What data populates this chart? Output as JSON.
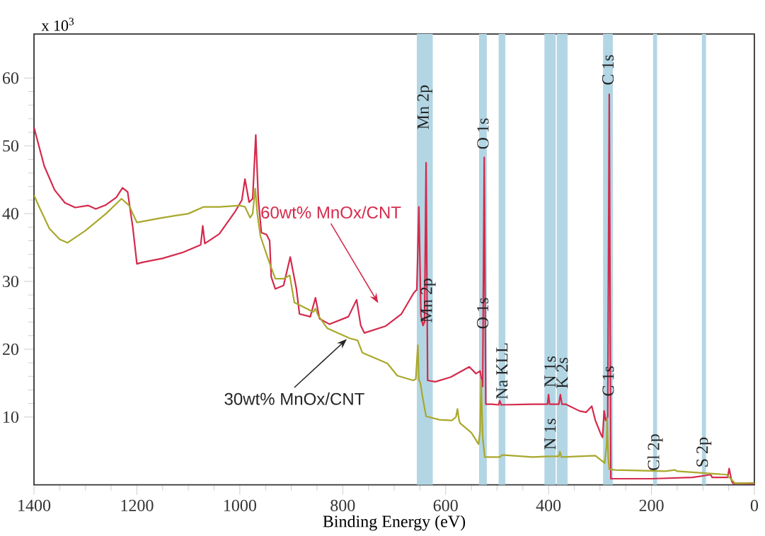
{
  "chart_data": {
    "type": "line",
    "xlabel": "Binding Energy (eV)",
    "xlim": [
      1400,
      0
    ],
    "ylim": [
      0,
      66.5
    ],
    "xticks": [
      1400,
      1200,
      1000,
      800,
      600,
      400,
      200,
      0
    ],
    "yticks": [
      10,
      20,
      30,
      40,
      50,
      60
    ],
    "marker": "none",
    "line_style": "solid",
    "series": [
      {
        "name": "60wt% MnOx/CNT",
        "color": "#d42a4c",
        "x": [
          1400,
          1380,
          1360,
          1340,
          1320,
          1295,
          1280,
          1260,
          1240,
          1228,
          1218,
          1208,
          1200,
          1190,
          1150,
          1110,
          1076,
          1072,
          1068,
          1040,
          1010,
          996,
          990,
          982,
          975,
          969,
          964,
          958,
          948,
          942,
          939,
          931,
          915,
          902,
          890,
          884,
          863,
          853,
          845,
          826,
          789,
          773,
          765,
          758,
          717,
          686,
          662,
          656,
          652,
          648,
          644,
          641,
          638,
          635,
          620,
          590,
          554,
          541,
          533,
          528,
          525,
          522,
          510,
          497,
          495,
          492,
          431,
          402,
          400,
          398,
          380,
          377,
          374,
          367,
          340,
          327,
          316,
          309,
          298,
          295,
          292,
          289,
          285,
          282,
          279,
          264,
          200,
          120,
          85,
          82,
          52,
          49,
          44,
          41,
          0
        ],
        "values": [
          52.7,
          47,
          43.5,
          41.6,
          40.9,
          41.2,
          40.7,
          41.3,
          42.4,
          43.8,
          43.2,
          38,
          32.6,
          32.8,
          33.4,
          34.3,
          35.4,
          38.2,
          35.6,
          37,
          40.2,
          42,
          45.1,
          41.7,
          42.2,
          51.6,
          42,
          37.2,
          36.9,
          36,
          30.7,
          28.9,
          29.4,
          33.6,
          28.9,
          25.2,
          24.8,
          27.6,
          24.5,
          23.7,
          24.8,
          27.3,
          23.5,
          22.4,
          23.4,
          25.2,
          28.3,
          28.8,
          41,
          25,
          23.5,
          24,
          47.5,
          15.4,
          15.2,
          15.9,
          17.4,
          16.4,
          16.8,
          14.5,
          48.3,
          11.9,
          11.9,
          11.8,
          12.4,
          11.8,
          11.9,
          11.9,
          13.3,
          11.9,
          11.9,
          13.3,
          11.9,
          11.9,
          10.9,
          10.7,
          11.6,
          9.5,
          7.4,
          7,
          10.9,
          9.5,
          10,
          57.6,
          0.9,
          0.9,
          0.9,
          1.1,
          1.5,
          1.1,
          1.1,
          2.4,
          0.5,
          0.2,
          0.2
        ]
      },
      {
        "name": "30wt% MnOx/CNT",
        "color": "#a9a82c",
        "x": [
          1400,
          1390,
          1370,
          1350,
          1335,
          1300,
          1260,
          1230,
          1215,
          1205,
          1200,
          1150,
          1100,
          1070,
          1040,
          1000,
          990,
          980,
          975,
          970,
          966,
          960,
          944,
          931,
          915,
          903,
          894,
          857,
          853,
          848,
          830,
          786,
          771,
          762,
          713,
          694,
          663,
          658,
          654,
          652,
          649,
          645,
          638,
          612,
          588,
          580,
          577,
          574,
          572,
          550,
          536,
          533,
          531,
          528,
          524,
          495,
          490,
          431,
          397,
          380,
          378,
          375,
          309,
          291,
          287,
          286,
          284,
          282,
          270,
          173,
          155,
          150,
          54,
          37,
          0
        ],
        "values": [
          42.7,
          41,
          37.8,
          36.2,
          35.7,
          37.5,
          40,
          42.2,
          41.2,
          39.5,
          38.7,
          39.4,
          40,
          41,
          41,
          41.2,
          41,
          39.4,
          40,
          43.7,
          40,
          36.7,
          33.1,
          30.4,
          30.4,
          30.9,
          26.9,
          25.5,
          26,
          25,
          23.1,
          21.6,
          21.3,
          19.5,
          17.9,
          16.1,
          15.4,
          15.6,
          20.6,
          15.5,
          15,
          13,
          10.1,
          9.6,
          9.5,
          10,
          11.2,
          9.6,
          9.1,
          7.7,
          6,
          8,
          15.4,
          7,
          4.1,
          4.1,
          4.4,
          4.1,
          4.2,
          4.2,
          4.9,
          4.1,
          4.3,
          3.2,
          6,
          9.8,
          4,
          2.3,
          2.2,
          2,
          2.2,
          2,
          1.5,
          0.2,
          0.3
        ]
      }
    ],
    "bands": [
      {
        "axis": "x",
        "from": 625,
        "to": 656,
        "color": "#b3d6e4",
        "label": "Mn 2p"
      },
      {
        "axis": "x",
        "from": 520,
        "to": 535,
        "color": "#b3d6e4",
        "label": "O 1s"
      },
      {
        "axis": "x",
        "from": 484,
        "to": 497,
        "color": "#b3d6e4",
        "label": "Na KLL"
      },
      {
        "axis": "x",
        "from": 386,
        "to": 408,
        "color": "#b3d6e4",
        "label": "N 1s"
      },
      {
        "axis": "x",
        "from": 363,
        "to": 384,
        "color": "#b3d6e4",
        "label": "K 2s"
      },
      {
        "axis": "x",
        "from": 275,
        "to": 294,
        "color": "#b3d6e4",
        "label": "C 1s"
      },
      {
        "axis": "x",
        "from": 189,
        "to": 197,
        "color": "#b3d6e4",
        "label": "Cl 2p"
      },
      {
        "axis": "x",
        "from": 94,
        "to": 102,
        "color": "#b3d6e4",
        "label": "S 2p"
      }
    ],
    "annotations": [
      "x 10$^{3}$",
      "Mn 2p",
      "O 1s",
      "C 1s",
      "N 1s"
    ]
  }
}
